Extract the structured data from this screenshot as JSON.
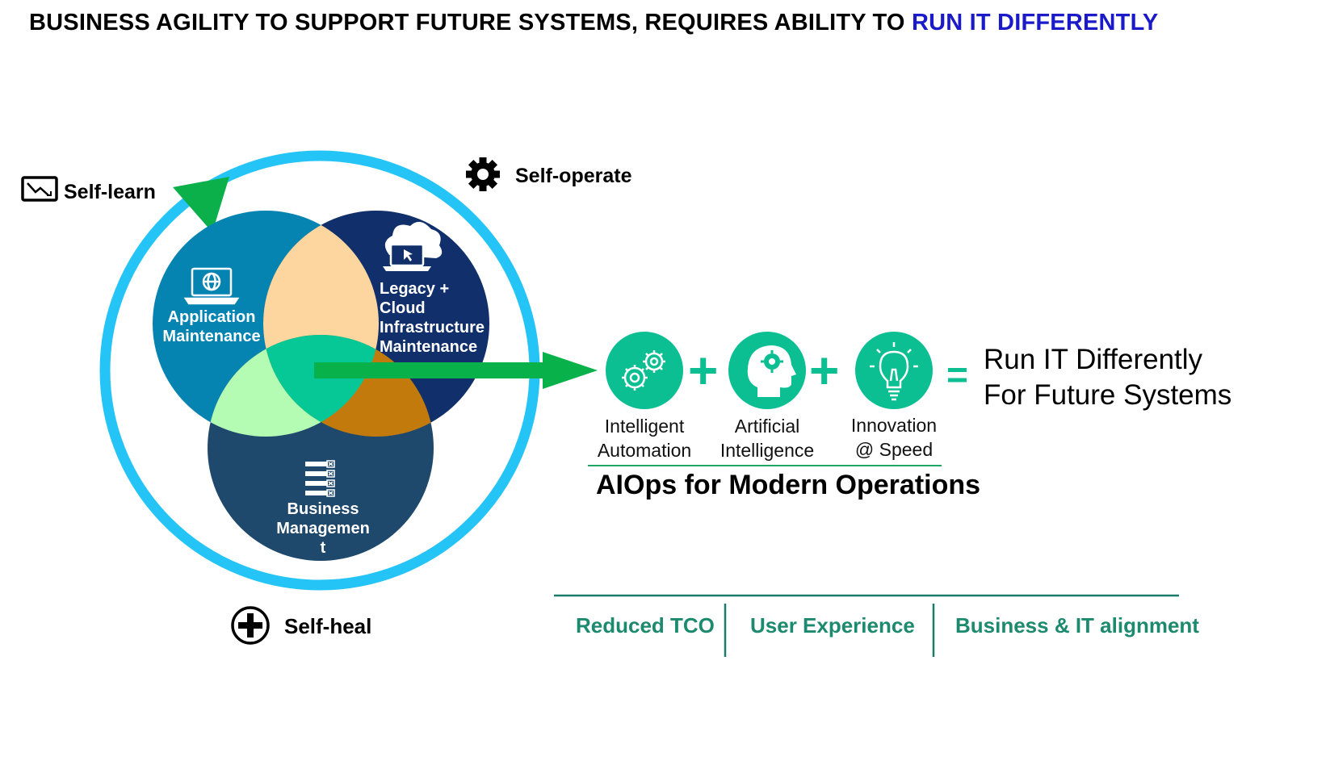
{
  "header": {
    "title_prefix": "BUSINESS AGILITY TO SUPPORT FUTURE SYSTEMS, REQUIRES ABILITY TO ",
    "title_accent": "RUN IT DIFFERENTLY"
  },
  "cycle": {
    "self_learn": {
      "label": "Self-learn",
      "icon": "monitor-chart-icon"
    },
    "self_operate": {
      "label": "Self-operate",
      "icon": "gear-icon"
    },
    "self_heal": {
      "label": "Self-heal",
      "icon": "plus-circle-icon"
    }
  },
  "venn": {
    "application": {
      "line1": "Application",
      "line2": "Maintenance",
      "icon": "laptop-globe-icon"
    },
    "infrastructure": {
      "line1": "Legacy +",
      "line2": "Cloud",
      "line3": "Infrastructure",
      "line4": "Maintenance",
      "icon": "cloud-laptop-icon"
    },
    "business": {
      "line1": "Business",
      "line2": "Managemen",
      "line3": "t",
      "icon": "checklist-icon"
    }
  },
  "equation": {
    "items": [
      {
        "line1": "Intelligent",
        "line2": "Automation",
        "icon": "gears-icon"
      },
      {
        "line1": "Artificial",
        "line2": "Intelligence",
        "icon": "head-gear-icon"
      },
      {
        "line1": "Innovation",
        "line2": "@ Speed",
        "icon": "lightbulb-icon"
      }
    ],
    "plus": "+",
    "equals": "=",
    "result_line1": "Run IT Differently",
    "result_line2": "For Future Systems",
    "caption": "AIOps for Modern Operations"
  },
  "benefits": [
    "Reduced TCO",
    "User Experience",
    "Business & IT alignment"
  ],
  "colors": {
    "ring": "#25c4f7",
    "app_circle": "#0584b2",
    "infra_circle": "#11306b",
    "business_circle": "#1f496c",
    "overlap_app_infra": "#fcd69e",
    "overlap_app_business": "#b4fcb4",
    "overlap_infra_business": "#c17a0b",
    "overlap_center": "#05c896",
    "icon_teal": "#0cbf93",
    "arrow_green": "#08b14a",
    "title_accent": "#1a1ac8",
    "benefit_text": "#1b8a6e"
  }
}
